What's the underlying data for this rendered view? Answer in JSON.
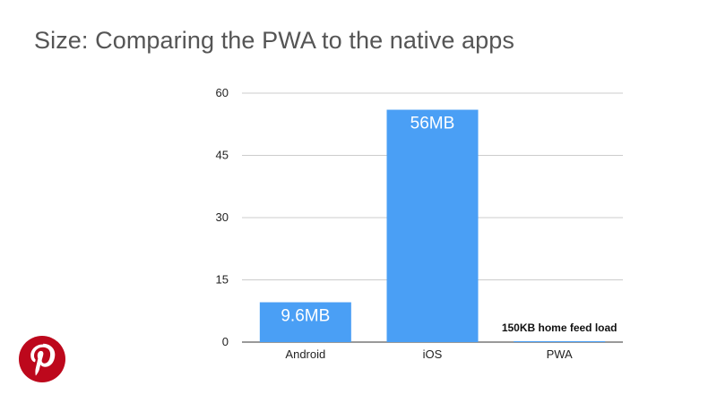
{
  "slide": {
    "title": "Size: Comparing the PWA to the native apps"
  },
  "logo": {
    "icon": "pinterest-logo-icon",
    "color": "#bd081c"
  },
  "chart_data": {
    "type": "bar",
    "title": "",
    "xlabel": "",
    "ylabel": "",
    "categories": [
      "Android",
      "iOS",
      "PWA"
    ],
    "values": [
      9.6,
      56,
      0.15
    ],
    "data_labels": [
      "9.6MB",
      "56MB",
      "150KB home feed load"
    ],
    "ylim": [
      0,
      60
    ],
    "yticks": [
      0,
      15,
      30,
      45,
      60
    ],
    "grid": true,
    "legend": "none",
    "bar_color": "#4a9ff5"
  }
}
